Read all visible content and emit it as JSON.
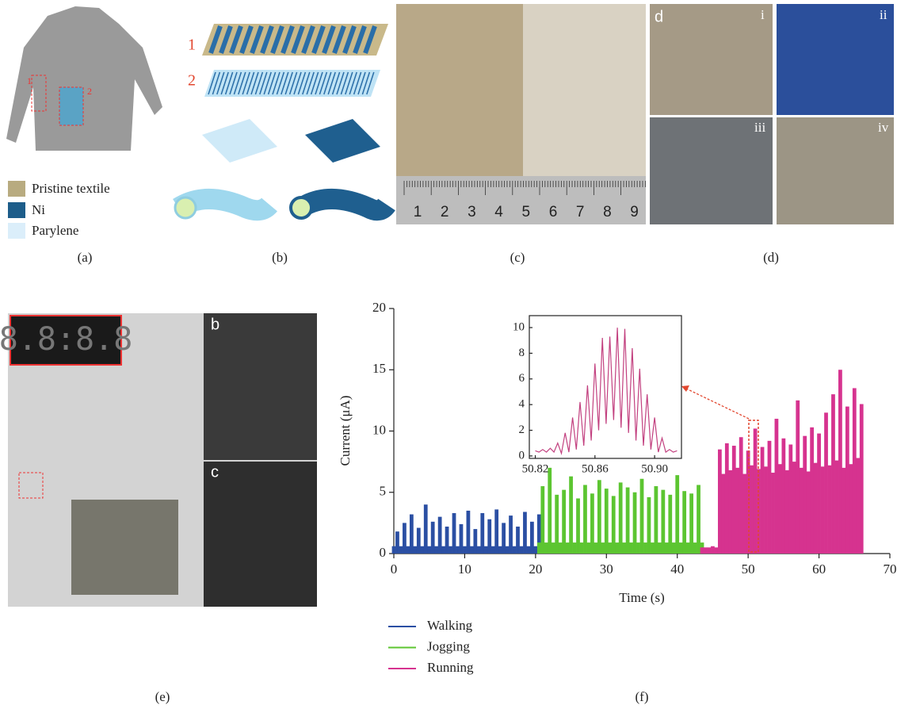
{
  "figure": {
    "captions": [
      "(a)",
      "(b)",
      "(c)",
      "(d)",
      "(e)",
      "(f)"
    ],
    "panel_a": {
      "legend": [
        "Pristine textile",
        "Ni",
        "Parylene"
      ],
      "labels": [
        "1",
        "2"
      ]
    },
    "panel_b": {
      "labels": [
        "1",
        "2"
      ]
    },
    "panel_c": {
      "ruler": [
        "1",
        "2",
        "3",
        "4",
        "5",
        "6",
        "7",
        "8",
        "9"
      ]
    },
    "panel_d": {
      "labels": [
        "d",
        "i",
        "ii",
        "iii",
        "iv"
      ]
    },
    "panel_e": {
      "display": "8.8:8.8",
      "labels": [
        "b",
        "c"
      ]
    }
  },
  "chart_data": [
    {
      "type": "area",
      "xlabel": "Time (s)",
      "ylabel": "Current (μA)",
      "xlim": [
        0,
        70
      ],
      "xticks": [
        0,
        10,
        20,
        30,
        40,
        50,
        60,
        70
      ],
      "ylim": [
        0,
        20
      ],
      "yticks": [
        0,
        5,
        10,
        15,
        20
      ],
      "series": [
        {
          "name": "Walking",
          "color": "#2b4fa3",
          "x": [
            0,
            0.5,
            1,
            1.5,
            2,
            2.5,
            3,
            3.5,
            4,
            4.5,
            5,
            5.5,
            6,
            6.5,
            7,
            7.5,
            8,
            8.5,
            9,
            9.5,
            10,
            10.5,
            11,
            11.5,
            12,
            12.5,
            13,
            13.5,
            14,
            14.5,
            15,
            15.5,
            16,
            16.5,
            17,
            17.5,
            18,
            18.5,
            19,
            19.5,
            20,
            20.5
          ],
          "values": [
            0.6,
            1.8,
            0.6,
            2.5,
            0.6,
            3.2,
            0.6,
            2.1,
            0.6,
            4.0,
            0.6,
            2.6,
            0.6,
            3.0,
            0.6,
            2.2,
            0.6,
            3.3,
            0.6,
            2.4,
            0.6,
            3.5,
            0.6,
            2.0,
            0.6,
            3.3,
            0.6,
            2.8,
            0.6,
            3.6,
            0.6,
            2.5,
            0.6,
            3.1,
            0.6,
            2.2,
            0.6,
            3.4,
            0.6,
            2.6,
            0.6,
            3.2
          ]
        },
        {
          "name": "Jogging",
          "color": "#5cc531",
          "x": [
            20.5,
            21,
            21.5,
            22,
            22.5,
            23,
            23.5,
            24,
            24.5,
            25,
            25.5,
            26,
            26.5,
            27,
            27.5,
            28,
            28.5,
            29,
            29.5,
            30,
            30.5,
            31,
            31.5,
            32,
            32.5,
            33,
            33.5,
            34,
            34.5,
            35,
            35.5,
            36,
            36.5,
            37,
            37.5,
            38,
            38.5,
            39,
            39.5,
            40,
            40.5,
            41,
            41.5,
            42,
            42.5,
            43,
            43.5
          ],
          "values": [
            0.9,
            5.5,
            0.9,
            7.0,
            0.9,
            4.8,
            0.9,
            5.2,
            0.9,
            6.3,
            0.9,
            4.5,
            0.9,
            5.6,
            0.9,
            4.9,
            0.9,
            6.0,
            0.9,
            5.3,
            0.9,
            4.7,
            0.9,
            5.8,
            0.9,
            5.4,
            0.9,
            5.0,
            0.9,
            6.1,
            0.9,
            4.6,
            0.9,
            5.5,
            0.9,
            5.2,
            0.9,
            4.8,
            0.9,
            6.4,
            0.9,
            5.1,
            0.9,
            4.9,
            0.9,
            5.6,
            0.9
          ]
        },
        {
          "name": "Running",
          "color": "#d6338f",
          "x": [
            43.5,
            44,
            44.5,
            45,
            45.5,
            46,
            46.5,
            47,
            47.5,
            48,
            48.5,
            49,
            49.5,
            50,
            50.5,
            51,
            51.5,
            52,
            52.5,
            53,
            53.5,
            54,
            54.5,
            55,
            55.5,
            56,
            56.5,
            57,
            57.5,
            58,
            58.5,
            59,
            59.5,
            60,
            60.5,
            61,
            61.5,
            62,
            62.5,
            63,
            63.5,
            64,
            64.5,
            65,
            65.5,
            66
          ],
          "values": [
            0.5,
            0.5,
            0.5,
            0.6,
            0.5,
            8.5,
            6.5,
            9.0,
            6.8,
            8.8,
            7.0,
            9.5,
            6.5,
            8.4,
            7.2,
            10.2,
            6.9,
            8.7,
            7.1,
            9.2,
            6.6,
            11.0,
            7.3,
            9.4,
            6.8,
            8.9,
            7.5,
            12.5,
            7.0,
            9.6,
            6.7,
            10.3,
            7.4,
            9.8,
            7.1,
            11.5,
            7.2,
            13.0,
            7.6,
            15.0,
            7.0,
            12.0,
            7.3,
            13.5,
            7.8,
            12.2
          ]
        }
      ]
    },
    {
      "type": "line",
      "xlim": [
        50.816,
        50.918
      ],
      "xticks": [
        50.82,
        50.86,
        {
          "value": 50.9,
          "label": "50.90"
        }
      ],
      "ylim": [
        -0.19,
        10.93
      ],
      "yticks": [
        0,
        2,
        4,
        6,
        8,
        10
      ],
      "color": "#c2407f",
      "x": [
        50.82,
        50.8225,
        50.825,
        50.8275,
        50.83,
        50.8325,
        50.835,
        50.8375,
        50.84,
        50.8425,
        50.845,
        50.8475,
        50.85,
        50.8525,
        50.855,
        50.8575,
        50.86,
        50.8625,
        50.865,
        50.8675,
        50.87,
        50.8725,
        50.875,
        50.8775,
        50.88,
        50.8825,
        50.885,
        50.8875,
        50.89,
        50.8925,
        50.895,
        50.8975,
        50.9,
        50.9025,
        50.905,
        50.9075,
        50.91,
        50.9125,
        50.915
      ],
      "values": [
        0.4,
        0.3,
        0.5,
        0.3,
        0.6,
        0.3,
        1.0,
        0.2,
        1.8,
        0.3,
        3.0,
        0.5,
        4.2,
        0.8,
        5.5,
        1.2,
        7.2,
        2.0,
        9.2,
        2.5,
        9.3,
        2.8,
        10.0,
        2.2,
        9.9,
        1.8,
        8.4,
        1.2,
        6.8,
        0.8,
        4.8,
        0.5,
        3.0,
        0.3,
        1.4,
        0.3,
        0.5,
        0.3,
        0.4
      ]
    }
  ]
}
